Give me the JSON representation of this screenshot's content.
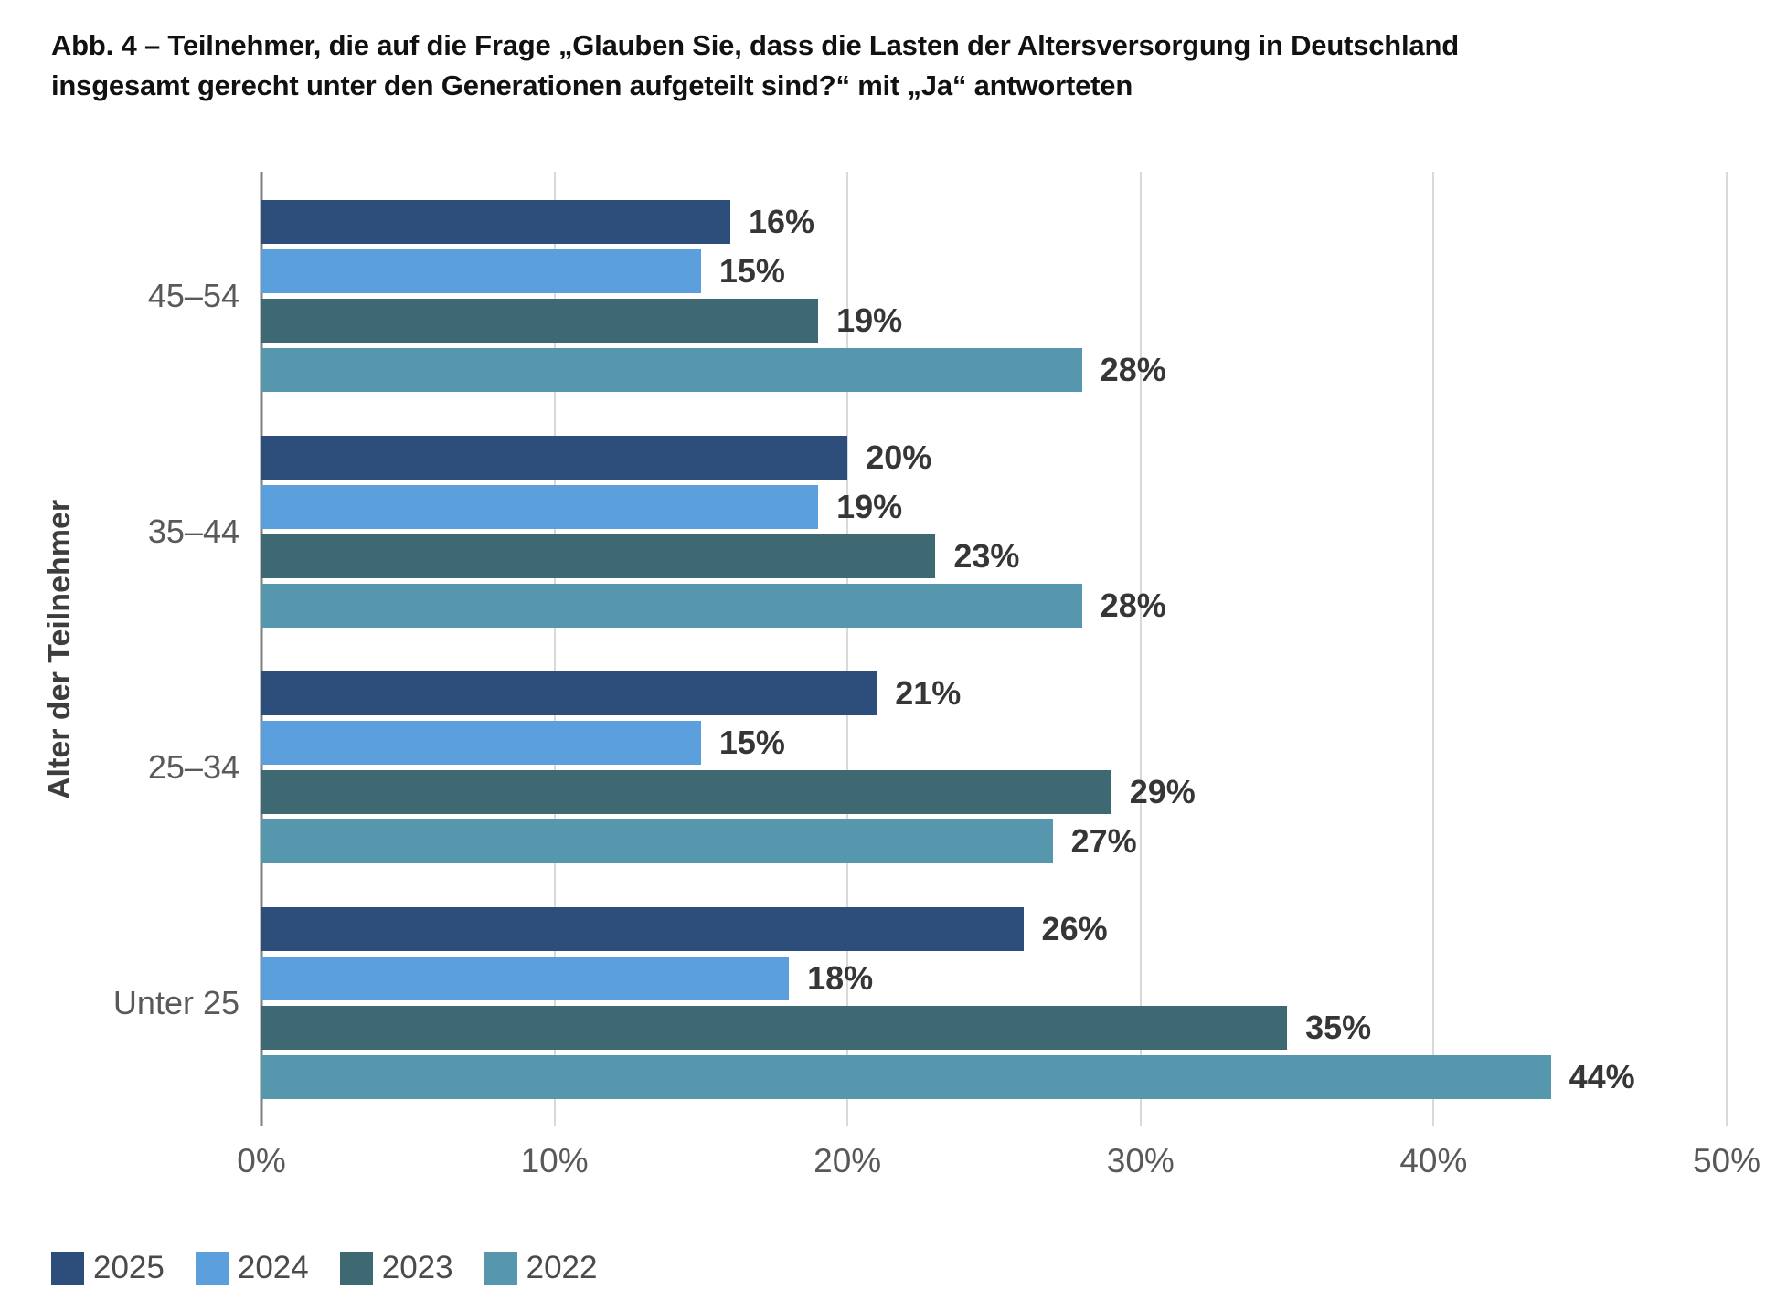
{
  "header": {
    "title_lines": [
      "Abb. 4 – Teilnehmer, die auf die Frage „Glauben Sie, dass die Lasten der Altersversorgung in Deutschland",
      "insgesamt gerecht unter den Generationen aufgeteilt sind?“ mit „Ja“ antworteten"
    ]
  },
  "chart_data": {
    "type": "bar",
    "orientation": "horizontal",
    "title": "Abb. 4 – Teilnehmer, die auf die Frage „Glauben Sie, dass die Lasten der Altersversorgung in Deutschland insgesamt gerecht unter den Generationen aufgeteilt sind?“ mit „Ja“ antworteten",
    "xlabel": "",
    "ylabel": "Alter der Teilnehmer",
    "categories": [
      "45–54",
      "35–44",
      "25–34",
      "Unter 25"
    ],
    "series": [
      {
        "name": "2025",
        "color": "#2D4D7B",
        "values": [
          16,
          20,
          21,
          26
        ],
        "labels": [
          "16%",
          "20%",
          "21%",
          "26%"
        ]
      },
      {
        "name": "2024",
        "color": "#5B9FDC",
        "values": [
          15,
          19,
          15,
          18
        ],
        "labels": [
          "15%",
          "19%",
          "15%",
          "18%"
        ]
      },
      {
        "name": "2023",
        "color": "#3E6973",
        "values": [
          19,
          23,
          29,
          35
        ],
        "labels": [
          "19%",
          "23%",
          "29%",
          "35%"
        ]
      },
      {
        "name": "2022",
        "color": "#5697AE",
        "values": [
          28,
          28,
          27,
          44
        ],
        "labels": [
          "28%",
          "28%",
          "27%",
          "44%"
        ]
      }
    ],
    "value_suffix": "%",
    "xlim": [
      0,
      50
    ],
    "x_ticks": [
      0,
      10,
      20,
      30,
      40,
      50
    ],
    "x_tick_labels": [
      "0%",
      "10%",
      "20%",
      "30%",
      "40%",
      "50%"
    ],
    "grid": true,
    "legend_position": "bottom-left",
    "colors": {
      "gridline": "#d9d9d9",
      "axis_line": "#7f7f7f",
      "value_label": "#363636",
      "tick_label": "#595959"
    }
  }
}
